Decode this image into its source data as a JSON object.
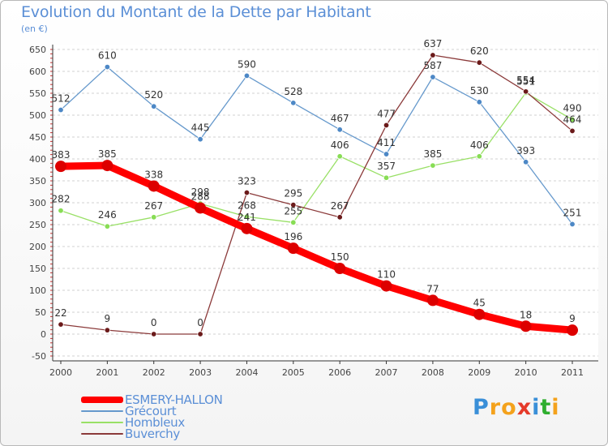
{
  "chart_data": {
    "type": "line",
    "title": "Evolution du Montant de la Dette par Habitant",
    "subtitle": "(en €)",
    "x": [
      "2000",
      "2001",
      "2002",
      "2003",
      "2004",
      "2005",
      "2006",
      "2007",
      "2008",
      "2009",
      "2010",
      "2011"
    ],
    "ylim": [
      -50,
      650
    ],
    "yticks": [
      -50,
      0,
      50,
      100,
      150,
      200,
      250,
      300,
      350,
      400,
      450,
      500,
      550,
      600,
      650
    ],
    "grid": "horizontal-dashed",
    "legend_position": "bottom-left",
    "series": [
      {
        "name": "ESMERY-HALLON",
        "color": "#ff0000",
        "marker": "#dd0000",
        "emphasis": true,
        "values": [
          383,
          385,
          338,
          288,
          241,
          196,
          150,
          110,
          77,
          45,
          18,
          9
        ],
        "labels": [
          "383",
          "385",
          "338",
          "288",
          "241",
          "196",
          "150",
          "110",
          "77",
          "45",
          "18",
          "9"
        ]
      },
      {
        "name": "Grécourt",
        "color": "#6699cc",
        "marker": "#4d88c6",
        "values": [
          512,
          610,
          520,
          445,
          590,
          528,
          467,
          411,
          587,
          530,
          393,
          251
        ],
        "labels": [
          "512",
          "610",
          "520",
          "445",
          "590",
          "528",
          "467",
          "411",
          "587",
          "530",
          "393",
          "251"
        ]
      },
      {
        "name": "Hombleux",
        "color": "#99e066",
        "marker": "#88dd55",
        "values": [
          282,
          246,
          267,
          298,
          268,
          255,
          406,
          357,
          385,
          406,
          551,
          490
        ],
        "labels": [
          "282",
          "246",
          "267",
          "298",
          "268",
          "255",
          "406",
          "357",
          "385",
          "406",
          "551",
          "490"
        ]
      },
      {
        "name": "Buverchy",
        "color": "#8b3a3a",
        "marker": "#6b1a1a",
        "values": [
          22,
          9,
          0,
          0,
          323,
          295,
          267,
          477,
          637,
          620,
          554,
          464
        ],
        "labels": [
          "22",
          "9",
          "0",
          "0",
          "323",
          "295",
          "267",
          "477",
          "637",
          "620",
          "554",
          "464"
        ]
      }
    ]
  },
  "logo": {
    "letters": [
      "P",
      "r",
      "o",
      "x",
      "i",
      "t",
      "i"
    ],
    "colors": [
      "#3a8fd8",
      "#f4a21c",
      "#f4a21c",
      "#e53a2a",
      "#3a8fd8",
      "#2fae2f",
      "#f4a21c"
    ]
  }
}
